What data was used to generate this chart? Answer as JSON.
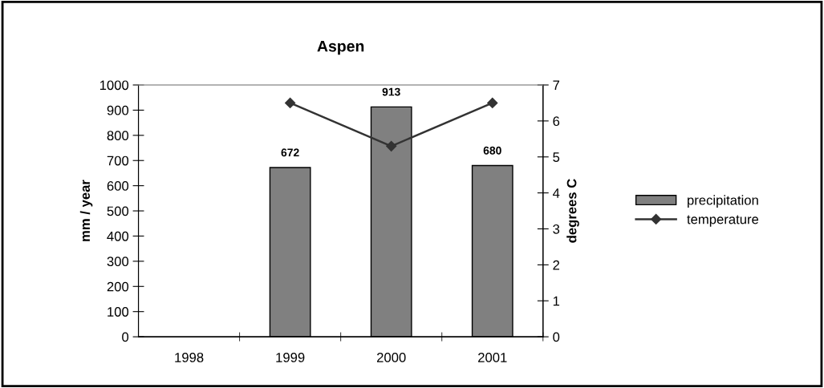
{
  "chart_data": {
    "type": "bar",
    "title": "Aspen",
    "categories": [
      "1998",
      "1999",
      "2000",
      "2001"
    ],
    "ylabel": "mm / year",
    "y2label": "degrees C",
    "ylim": [
      0,
      1000
    ],
    "yticks": [
      0,
      100,
      200,
      300,
      400,
      500,
      600,
      700,
      800,
      900,
      1000
    ],
    "y2lim": [
      0,
      7
    ],
    "y2ticks": [
      0,
      1,
      2,
      3,
      4,
      5,
      6,
      7
    ],
    "legend": "right",
    "grid": false,
    "series": [
      {
        "name": "precipitation",
        "color": "#808080",
        "values": [
          null,
          672,
          913,
          680
        ],
        "value_labels": [
          null,
          "672",
          "913",
          "680"
        ]
      },
      {
        "name": "temperature",
        "type": "line",
        "axis": "y2",
        "color": "#333333",
        "marker": "diamond",
        "values": [
          null,
          6.5,
          5.3,
          6.5
        ]
      }
    ]
  }
}
